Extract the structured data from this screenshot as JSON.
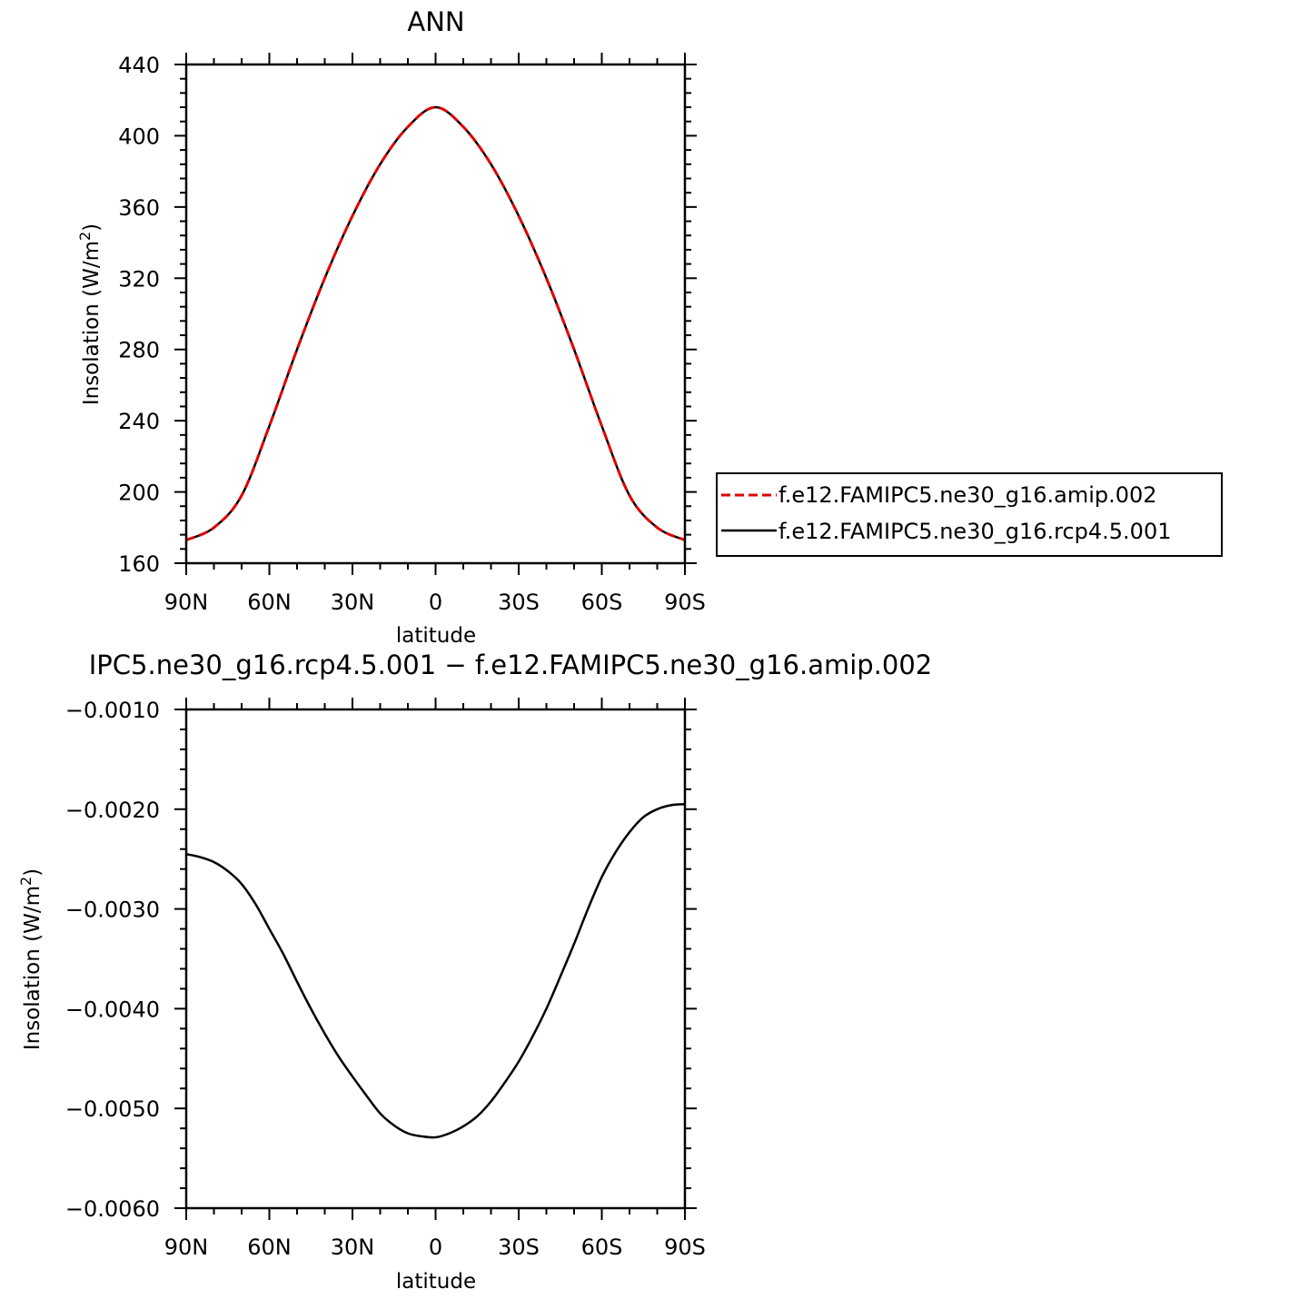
{
  "chart_data": [
    {
      "type": "line",
      "title": "ANN",
      "xlabel": "latitude",
      "ylabel": "Insolation (W/m²)",
      "ylabel_main": "Insolation  (W/m",
      "ylabel_sup": "2",
      "ylabel_close": ")",
      "xlim": [
        -90,
        90
      ],
      "ylim": [
        160,
        440
      ],
      "x_ticks": [
        {
          "value": -90,
          "label": "90N"
        },
        {
          "value": -60,
          "label": "60N"
        },
        {
          "value": -30,
          "label": "30N"
        },
        {
          "value": 0,
          "label": "0"
        },
        {
          "value": 30,
          "label": "30S"
        },
        {
          "value": 60,
          "label": "60S"
        },
        {
          "value": 90,
          "label": "90S"
        }
      ],
      "y_ticks": [
        {
          "value": 160,
          "label": "160"
        },
        {
          "value": 200,
          "label": "200"
        },
        {
          "value": 240,
          "label": "240"
        },
        {
          "value": 280,
          "label": "280"
        },
        {
          "value": 320,
          "label": "320"
        },
        {
          "value": 360,
          "label": "360"
        },
        {
          "value": 400,
          "label": "400"
        },
        {
          "value": 440,
          "label": "440"
        }
      ],
      "x_note": "latitude values: negative = N, positive = S",
      "x": [
        -90,
        -80,
        -70,
        -60,
        -50,
        -40,
        -30,
        -20,
        -10,
        0,
        10,
        20,
        30,
        40,
        50,
        60,
        70,
        80,
        90
      ],
      "series": [
        {
          "name": "f.e12.FAMIPC5.ne30_g16.amip.002",
          "color": "#e00000",
          "dash": true,
          "values": [
            173,
            180,
            198,
            237,
            280,
            320,
            355,
            384,
            405,
            416,
            405,
            384,
            355,
            320,
            280,
            237,
            198,
            180,
            173
          ]
        },
        {
          "name": "f.e12.FAMIPC5.ne30_g16.rcp4.5.001",
          "color": "#000000",
          "dash": false,
          "values": [
            173,
            180,
            198,
            237,
            280,
            320,
            355,
            384,
            405,
            416,
            405,
            384,
            355,
            320,
            280,
            237,
            198,
            180,
            173
          ]
        }
      ],
      "legend": {
        "placement": "right",
        "entries": [
          {
            "label": "f.e12.FAMIPC5.ne30_g16.amip.002",
            "color": "#e00000",
            "dash": true
          },
          {
            "label": "f.e12.FAMIPC5.ne30_g16.rcp4.5.001",
            "color": "#000000",
            "dash": false
          }
        ]
      }
    },
    {
      "type": "line",
      "title": "IPC5.ne30_g16.rcp4.5.001 − f.e12.FAMIPC5.ne30_g16.amip.002",
      "xlabel": "latitude",
      "ylabel": "Insolation (W/m²)",
      "ylabel_main": "Insolation  (W/m",
      "ylabel_sup": "2",
      "ylabel_close": ")",
      "xlim": [
        -90,
        90
      ],
      "ylim": [
        -0.006,
        -0.001
      ],
      "x_ticks": [
        {
          "value": -90,
          "label": "90N"
        },
        {
          "value": -60,
          "label": "60N"
        },
        {
          "value": -30,
          "label": "30N"
        },
        {
          "value": 0,
          "label": "0"
        },
        {
          "value": 30,
          "label": "30S"
        },
        {
          "value": 60,
          "label": "60S"
        },
        {
          "value": 90,
          "label": "90S"
        }
      ],
      "y_ticks": [
        {
          "value": -0.006,
          "label": "−0.0060"
        },
        {
          "value": -0.005,
          "label": "−0.0050"
        },
        {
          "value": -0.004,
          "label": "−0.0040"
        },
        {
          "value": -0.003,
          "label": "−0.0030"
        },
        {
          "value": -0.002,
          "label": "−0.0020"
        },
        {
          "value": -0.001,
          "label": "−0.0010"
        }
      ],
      "x": [
        -90,
        -85,
        -80,
        -75,
        -70,
        -65,
        -60,
        -55,
        -50,
        -45,
        -40,
        -35,
        -30,
        -25,
        -20,
        -15,
        -10,
        -5,
        0,
        5,
        10,
        15,
        20,
        25,
        30,
        35,
        40,
        45,
        50,
        55,
        60,
        65,
        70,
        75,
        80,
        85,
        90
      ],
      "series": [
        {
          "color": "#000000",
          "values": [
            -0.00245,
            -0.00248,
            -0.00253,
            -0.00262,
            -0.00275,
            -0.00295,
            -0.0032,
            -0.00345,
            -0.00373,
            -0.004,
            -0.00425,
            -0.00448,
            -0.00468,
            -0.00487,
            -0.00505,
            -0.00517,
            -0.00525,
            -0.00528,
            -0.00529,
            -0.00525,
            -0.00518,
            -0.00508,
            -0.00493,
            -0.00474,
            -0.00453,
            -0.00428,
            -0.004,
            -0.00368,
            -0.00335,
            -0.003,
            -0.00268,
            -0.00243,
            -0.00223,
            -0.00208,
            -0.002,
            -0.00196,
            -0.00195
          ]
        }
      ]
    }
  ]
}
